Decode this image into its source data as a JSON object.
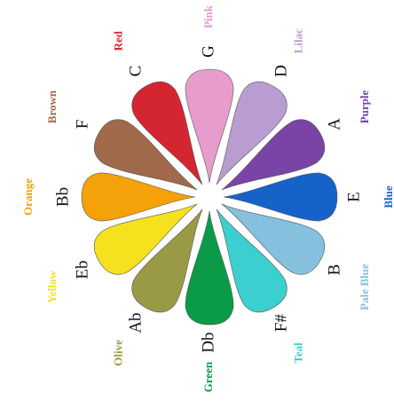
{
  "wheel": {
    "segments": [
      {
        "note": "G",
        "name": "Pink",
        "color": "#e89ccb"
      },
      {
        "note": "D",
        "name": "Lilac",
        "color": "#b99dd2"
      },
      {
        "note": "A",
        "name": "Purple",
        "color": "#7a44a6"
      },
      {
        "note": "E",
        "name": "Blue",
        "color": "#1662c9"
      },
      {
        "note": "B",
        "name": "Pale Blue",
        "color": "#86c0df"
      },
      {
        "note": "F#",
        "name": "Teal",
        "color": "#3ccfcf"
      },
      {
        "note": "Db",
        "name": "Green",
        "color": "#0a9a48"
      },
      {
        "note": "Ab",
        "name": "Olive",
        "color": "#9b9a44"
      },
      {
        "note": "Eb",
        "name": "Yellow",
        "color": "#f5e11e"
      },
      {
        "note": "Bb",
        "name": "Orange",
        "color": "#f5a10a"
      },
      {
        "note": "F",
        "name": "Brown",
        "color": "#a0694a"
      },
      {
        "note": "C",
        "name": "Red",
        "color": "#d42630"
      }
    ]
  }
}
